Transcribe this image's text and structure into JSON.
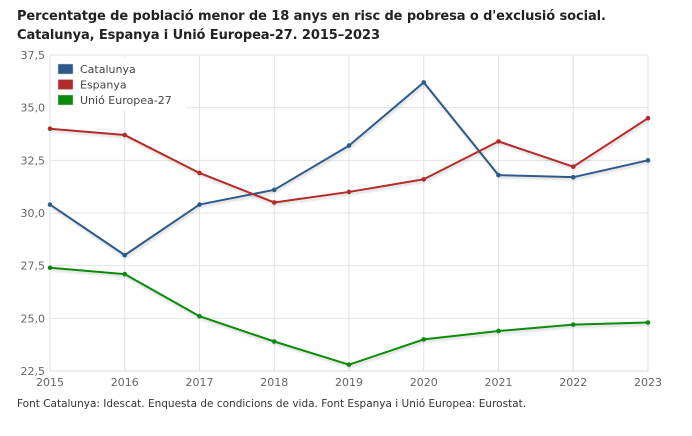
{
  "title_line1": "Percentatge de població menor de 18 anys en risc de pobresa o d'exclusió social.",
  "title_line2": "Catalunya, Espanya i Unió Europea-27. 2015–2023",
  "source": "Font Catalunya: Idescat. Enquesta de condicions de vida. Font Espanya i Unió Europea: Eurostat.",
  "chart_data": {
    "type": "line",
    "title": "Percentatge de població menor de 18 anys en risc de pobresa o d'exclusió social. Catalunya, Espanya i Unió Europea-27. 2015–2023",
    "xlabel": "",
    "ylabel": "",
    "x": [
      "2015",
      "2016",
      "2017",
      "2018",
      "2019",
      "2020",
      "2021",
      "2022",
      "2023"
    ],
    "ylim": [
      22.5,
      37.5
    ],
    "yticks": [
      "22,5",
      "25,0",
      "27,5",
      "30,0",
      "32,5",
      "35,0",
      "37,5"
    ],
    "ytick_values": [
      22.5,
      25.0,
      27.5,
      30.0,
      32.5,
      35.0,
      37.5
    ],
    "grid": true,
    "legend_position": "top-left",
    "series": [
      {
        "name": "Catalunya",
        "color": "#2e5a8a",
        "values": [
          30.4,
          28.0,
          30.4,
          31.1,
          33.2,
          36.2,
          31.8,
          31.7,
          32.5
        ]
      },
      {
        "name": "Espanya",
        "color": "#b22a2a",
        "values": [
          34.0,
          33.7,
          31.9,
          30.5,
          31.0,
          31.6,
          33.4,
          32.2,
          34.5
        ]
      },
      {
        "name": "Unió Europea-27",
        "color": "#0a8a0a",
        "values": [
          27.4,
          27.1,
          25.1,
          23.9,
          22.8,
          24.0,
          24.4,
          24.7,
          24.8
        ]
      }
    ]
  }
}
